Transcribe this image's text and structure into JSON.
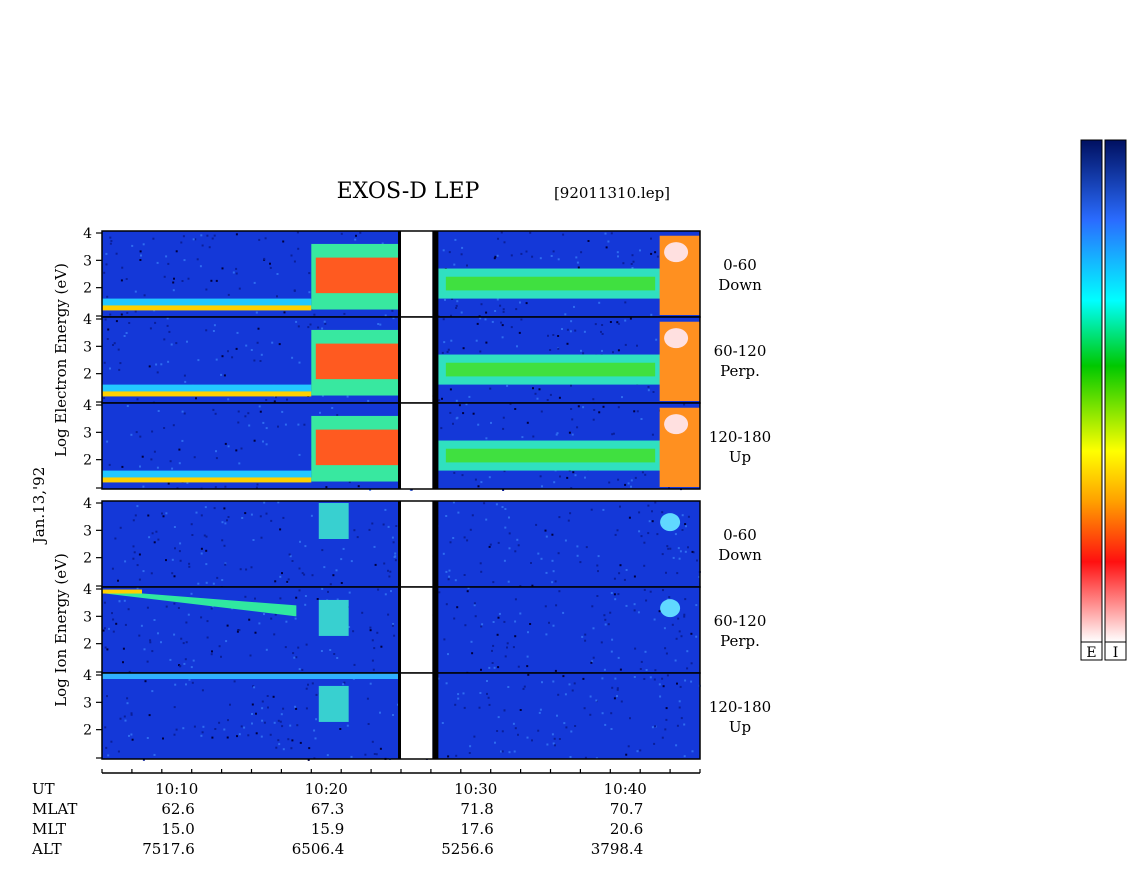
{
  "chart_data": {
    "type": "heatmap",
    "title": "EXOS-D LEP",
    "file_label": "[92011310.lep]",
    "date_label": "Jan.13,'92",
    "x_axis": {
      "label": "UT",
      "range_minutes": [
        "10:05",
        "10:45"
      ],
      "major_ticks": [
        "10:10",
        "10:20",
        "10:30",
        "10:40"
      ]
    },
    "ephemeris": {
      "rows": [
        {
          "label": "MLAT",
          "values": [
            "62.6",
            "67.3",
            "71.8",
            "70.7"
          ]
        },
        {
          "label": "MLT",
          "values": [
            "15.0",
            "15.9",
            "17.6",
            "20.6"
          ]
        },
        {
          "label": "ALT",
          "values": [
            "7517.6",
            "6506.4",
            "5256.6",
            "3798.4"
          ]
        }
      ]
    },
    "groups": [
      {
        "ylabel": "Log Electron Energy (eV)",
        "species": "electron",
        "panels": [
          {
            "pitch_angle": "0-60",
            "direction": "Down"
          },
          {
            "pitch_angle": "60-120",
            "direction": "Perp."
          },
          {
            "pitch_angle": "120-180",
            "direction": "Up"
          }
        ]
      },
      {
        "ylabel": "Log Ion Energy (eV)",
        "species": "ion",
        "panels": [
          {
            "pitch_angle": "0-60",
            "direction": "Down"
          },
          {
            "pitch_angle": "60-120",
            "direction": "Perp."
          },
          {
            "pitch_angle": "120-180",
            "direction": "Up"
          }
        ]
      }
    ],
    "y_ticks": [
      "2",
      "3",
      "4"
    ],
    "ylim": [
      1,
      4
    ],
    "data_gap": {
      "start": "10:25",
      "end": "10:27.5"
    },
    "colorbars": [
      {
        "label": "E"
      },
      {
        "label": "I"
      }
    ],
    "colormap": [
      "#ffffff",
      "#ff0000",
      "#ffa500",
      "#ffff00",
      "#00cc00",
      "#00ffff",
      "#3366ff",
      "#0000cc",
      "#000080"
    ]
  }
}
